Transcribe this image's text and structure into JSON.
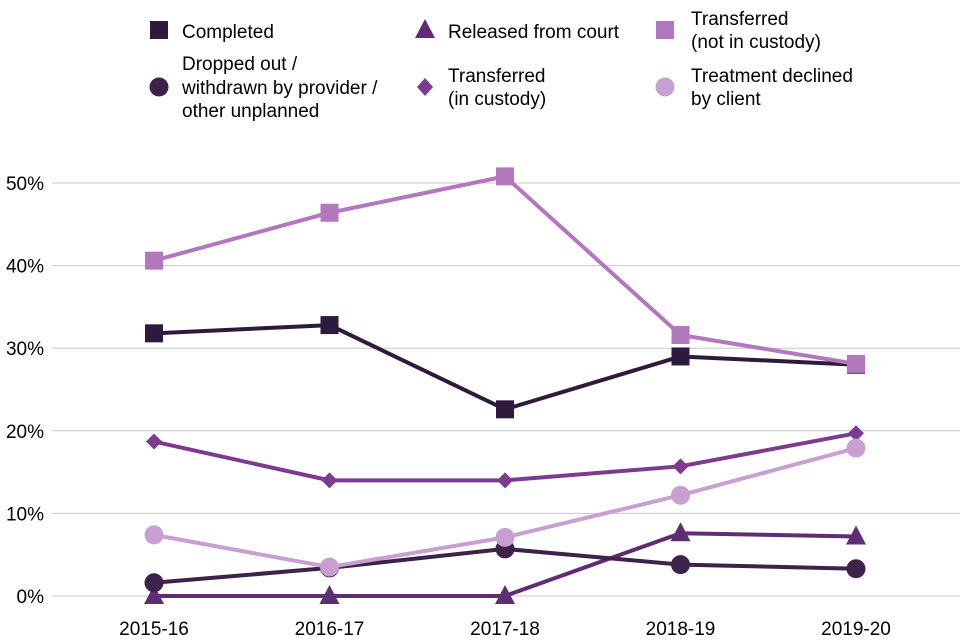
{
  "chart_data": {
    "type": "line",
    "title": "",
    "xlabel": "",
    "ylabel": "",
    "categories": [
      "2015-16",
      "2016-17",
      "2017-18",
      "2018-19",
      "2019-20"
    ],
    "ylim": [
      0,
      50
    ],
    "yticks": [
      0,
      10,
      20,
      30,
      40,
      50
    ],
    "ytick_labels": [
      "0%",
      "10%",
      "20%",
      "30%",
      "40%",
      "50%"
    ],
    "grid": "horizontal",
    "legend_position": "top",
    "series": [
      {
        "key": "completed",
        "name": "Completed",
        "label_lines": [
          "Completed"
        ],
        "marker": "square",
        "color": "#2e1a3a",
        "values": [
          31.8,
          32.8,
          22.6,
          29.0,
          28.0
        ]
      },
      {
        "key": "released",
        "name": "Released from court",
        "label_lines": [
          "Released from court"
        ],
        "marker": "triangle",
        "color": "#5e2d73",
        "values": [
          0,
          0,
          0,
          7.6,
          7.2
        ]
      },
      {
        "key": "transferred_not",
        "name": "Transferred (not in custody)",
        "label_lines": [
          "Transferred",
          "(not in custody)"
        ],
        "marker": "square",
        "color": "#b277bd",
        "values": [
          40.6,
          46.4,
          50.8,
          31.6,
          28.1
        ]
      },
      {
        "key": "dropped",
        "name": "Dropped out / withdrawn by provider / other unplanned",
        "label_lines": [
          "Dropped out /",
          "withdrawn by provider /",
          "other unplanned"
        ],
        "marker": "circle",
        "color": "#3d2249",
        "values": [
          1.6,
          3.4,
          5.7,
          3.8,
          3.3
        ]
      },
      {
        "key": "transferred_in",
        "name": "Transferred (in custody)",
        "label_lines": [
          "Transferred",
          "(in custody)"
        ],
        "marker": "diamond",
        "color": "#7c3b8e",
        "values": [
          18.7,
          14.0,
          14.0,
          15.7,
          19.7
        ]
      },
      {
        "key": "declined",
        "name": "Treatment declined by client",
        "label_lines": [
          "Treatment declined",
          "by client"
        ],
        "marker": "circle",
        "color": "#c79fd0",
        "values": [
          7.4,
          3.5,
          7.1,
          12.2,
          17.9
        ]
      }
    ]
  }
}
